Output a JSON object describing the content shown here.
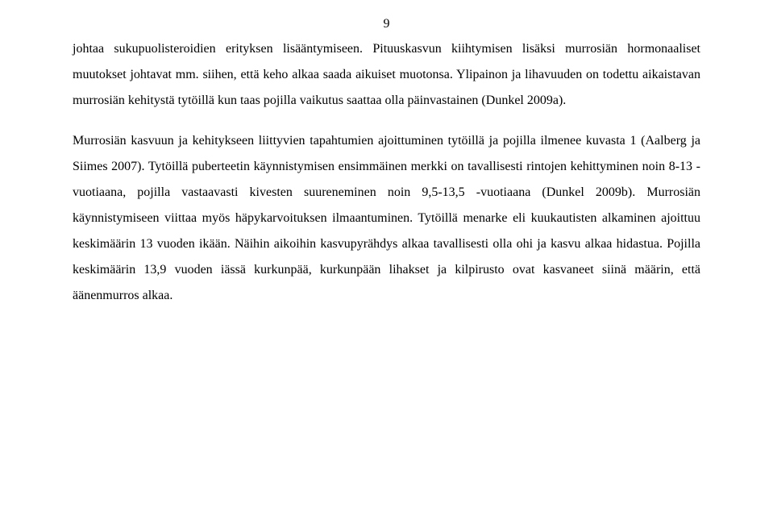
{
  "page_number": "9",
  "paragraphs": [
    "johtaa sukupuolisteroidien erityksen lisääntymiseen. Pituuskasvun kiihtymisen lisäksi murrosiän hormonaaliset muutokset johtavat mm. siihen, että keho alkaa saada aikuiset muotonsa. Ylipainon ja lihavuuden on todettu aikaistavan murrosiän kehitystä tytöillä kun taas pojilla vaikutus saattaa olla päinvastainen (Dunkel 2009a).",
    "Murrosiän kasvuun ja kehitykseen liittyvien tapahtumien ajoittuminen tytöillä ja pojilla ilmenee kuvasta 1 (Aalberg ja Siimes 2007). Tytöillä puberteetin käynnistymisen ensimmäinen merkki on tavallisesti rintojen kehittyminen noin 8-13 -vuotiaana, pojilla vastaavasti kivesten suureneminen noin 9,5-13,5 -vuotiaana (Dunkel 2009b). Murrosiän käynnistymiseen viittaa myös häpykarvoituksen ilmaantuminen. Tytöillä menarke eli kuukautisten alkaminen ajoittuu keskimäärin 13 vuoden ikään. Näihin aikoihin kasvupyrähdys alkaa tavallisesti olla ohi ja kasvu alkaa hidastua. Pojilla keskimäärin 13,9 vuoden iässä kurkunpää, kurkunpään lihakset ja kilpirusto ovat kasvaneet siinä määrin, että äänenmurros alkaa."
  ]
}
